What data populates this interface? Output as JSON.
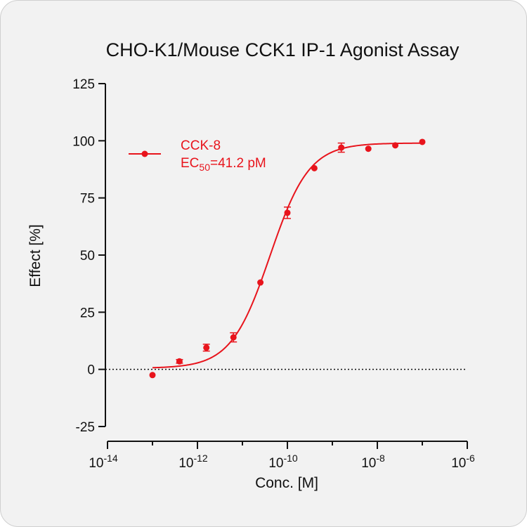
{
  "chart_data": {
    "type": "scatter",
    "title": "CHO-K1/Mouse CCK1 IP-1 Agonist Assay",
    "xlabel": "Conc. [M]",
    "ylabel": "Effect  [%]",
    "x_scale": "log10",
    "xlim": [
      1e-14,
      1e-06
    ],
    "ylim": [
      -25,
      125
    ],
    "y_ticks": [
      -25,
      0,
      25,
      50,
      75,
      100,
      125
    ],
    "x_major_ticks": [
      1e-14,
      1e-12,
      1e-10,
      1e-08,
      1e-06
    ],
    "x_major_tick_labels": [
      {
        "base": "10",
        "exp": "-14"
      },
      {
        "base": "10",
        "exp": "-12"
      },
      {
        "base": "10",
        "exp": "-10"
      },
      {
        "base": "10",
        "exp": "-8"
      },
      {
        "base": "10",
        "exp": "-6"
      }
    ],
    "x_minor_ticks": [
      1e-13,
      1e-11,
      1e-09,
      1e-07
    ],
    "reference_line": {
      "y": 0,
      "style": "dotted"
    },
    "grid": false,
    "legend_position": "top-left",
    "series": [
      {
        "name": "CCK-8",
        "annotation": {
          "prefix": "EC",
          "subscript": "50",
          "suffix": "=41.2 pM"
        },
        "color": "#e8141c",
        "x": [
          1e-13,
          3.98e-13,
          1.58e-12,
          6.31e-12,
          2.51e-11,
          1e-10,
          3.98e-10,
          1.58e-09,
          6.31e-09,
          2.51e-08,
          1e-07
        ],
        "y": [
          -2.5,
          3.5,
          9.5,
          14,
          38,
          68.5,
          88,
          97,
          96.5,
          98,
          99.5
        ],
        "error": [
          0,
          0.8,
          1.5,
          2.0,
          0,
          2.5,
          0,
          2.0,
          0,
          0,
          0
        ]
      }
    ],
    "fit_curve": {
      "model": "4PL",
      "bottom": 0.5,
      "top": 99,
      "ec50": 4.12e-11,
      "hill": 1.0,
      "x_range": [
        1e-13,
        1e-07
      ]
    }
  }
}
